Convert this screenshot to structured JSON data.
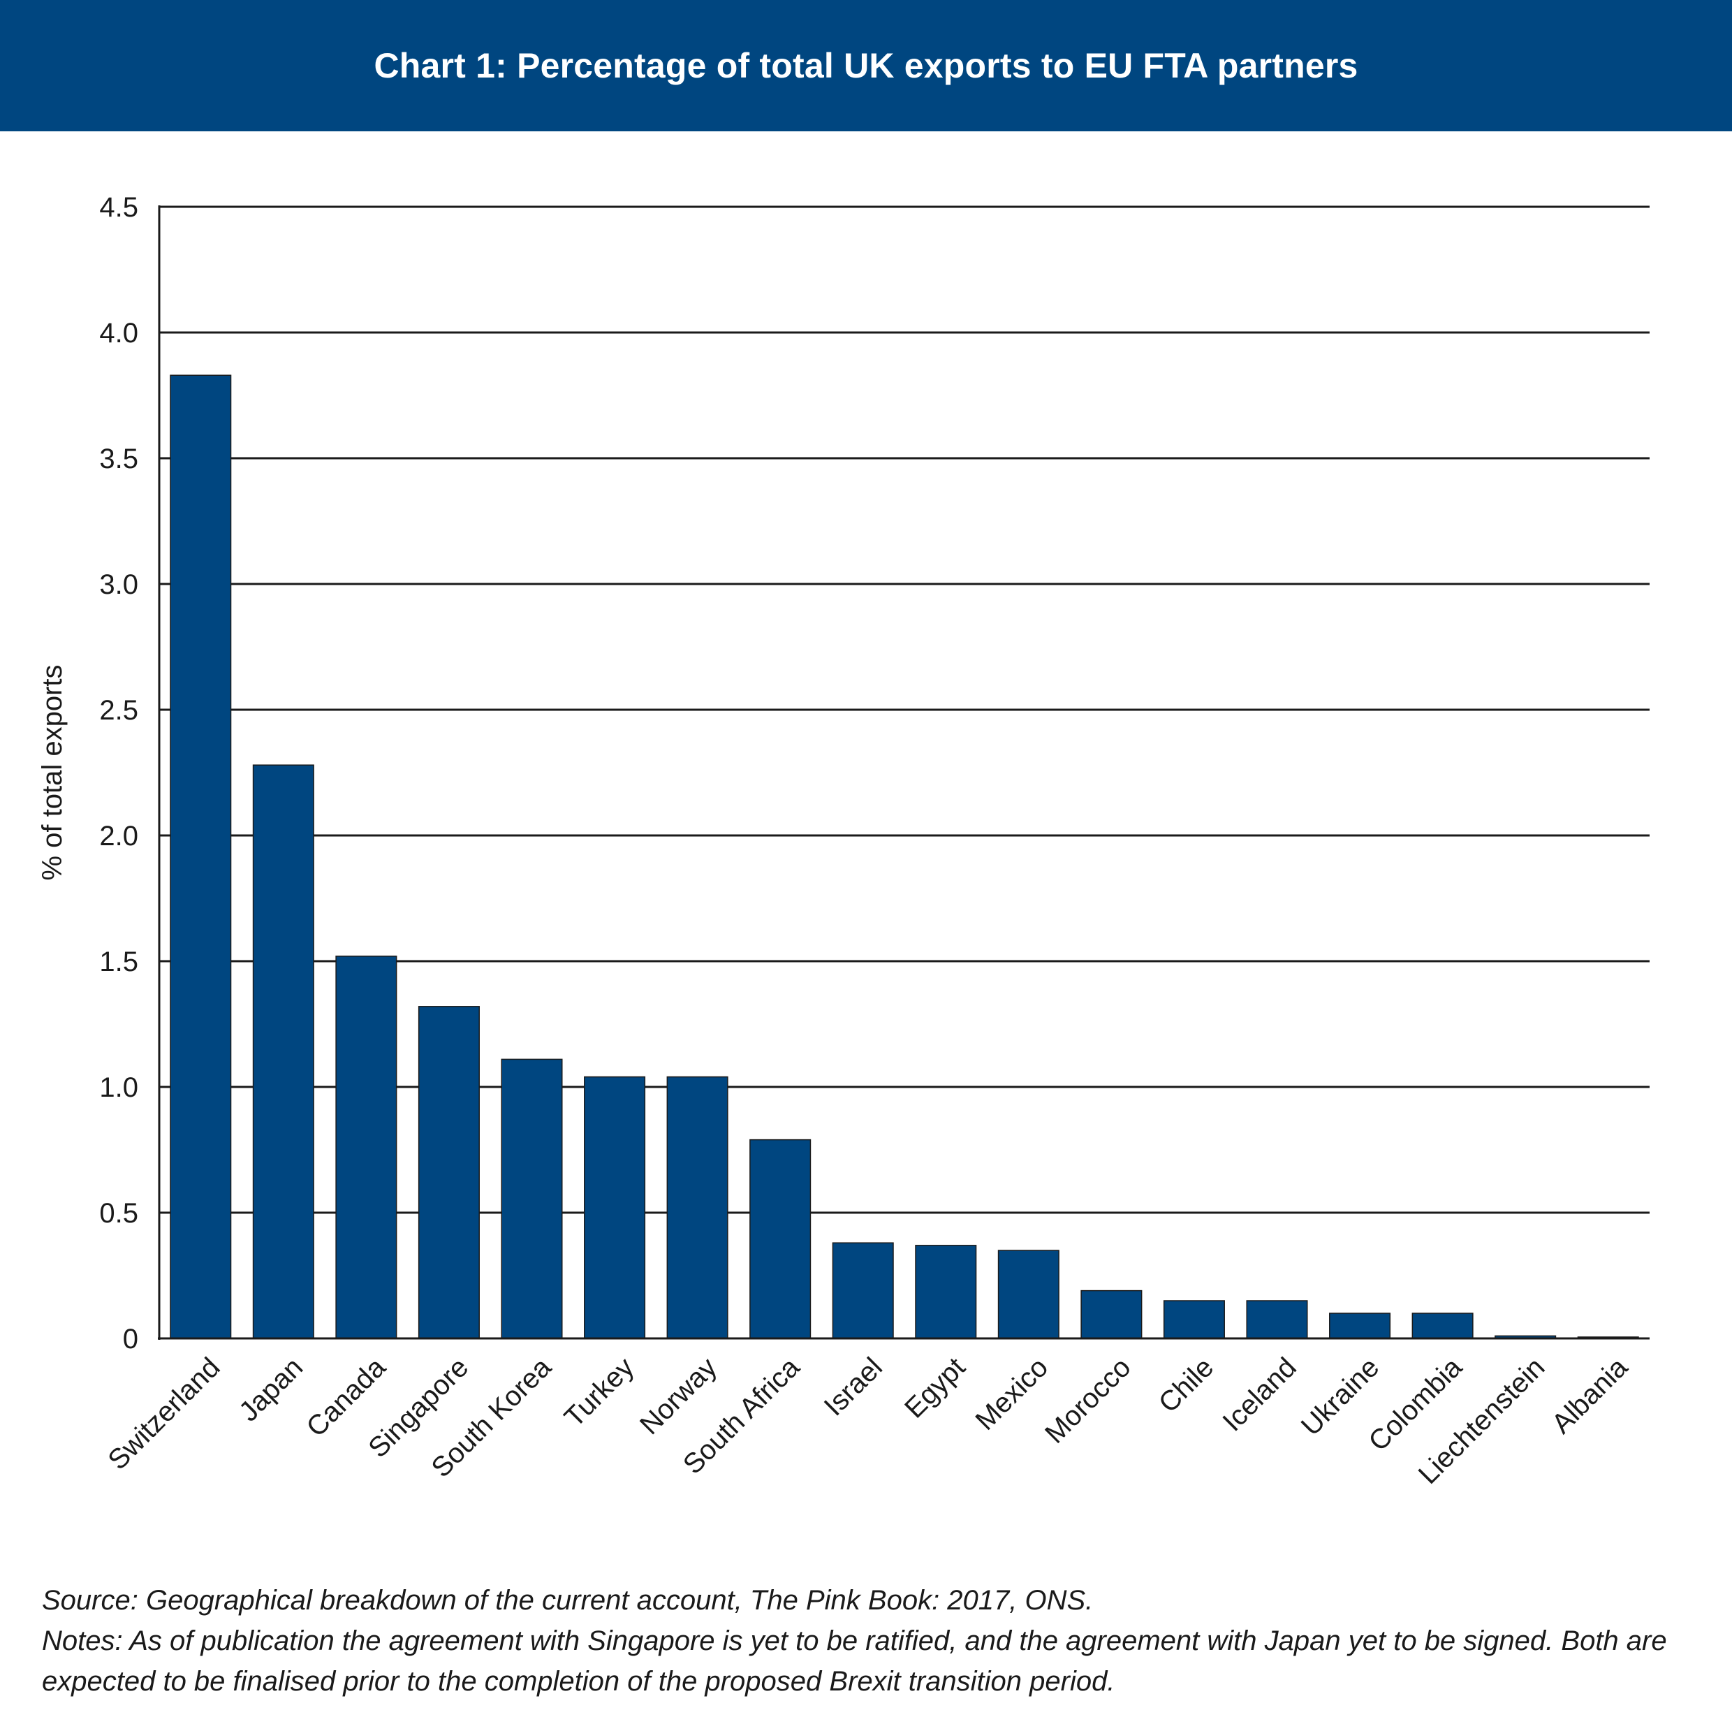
{
  "header": {
    "title": "Chart 1: Percentage of total UK exports to EU FTA partners"
  },
  "chart_data": {
    "type": "bar",
    "title": "Chart 1: Percentage of total UK exports to EU FTA partners",
    "xlabel": "",
    "ylabel": "% of total exports",
    "ylim": [
      0,
      4.5
    ],
    "yticks": [
      "0",
      "0.5",
      "1.0",
      "1.5",
      "2.0",
      "2.5",
      "3.0",
      "3.5",
      "4.0",
      "4.5"
    ],
    "grid": true,
    "categories": [
      "Switzerland",
      "Japan",
      "Canada",
      "Singapore",
      "South Korea",
      "Turkey",
      "Norway",
      "South Africa",
      "Israel",
      "Egypt",
      "Mexico",
      "Morocco",
      "Chile",
      "Iceland",
      "Ukraine",
      "Colombia",
      "Liechtenstein",
      "Albania"
    ],
    "values": [
      3.83,
      2.28,
      1.52,
      1.32,
      1.11,
      1.04,
      1.04,
      0.79,
      0.38,
      0.37,
      0.35,
      0.19,
      0.15,
      0.15,
      0.1,
      0.1,
      0.01,
      0.005
    ],
    "bar_color": "#004680"
  },
  "footer": {
    "source": "Source: Geographical breakdown of the current account, The Pink Book: 2017, ONS.",
    "notes": "Notes: As of publication the agreement with Singapore is yet to be ratified, and the agreement with Japan yet to be signed. Both are expected to be finalised prior to the completion of the proposed Brexit transition period."
  }
}
